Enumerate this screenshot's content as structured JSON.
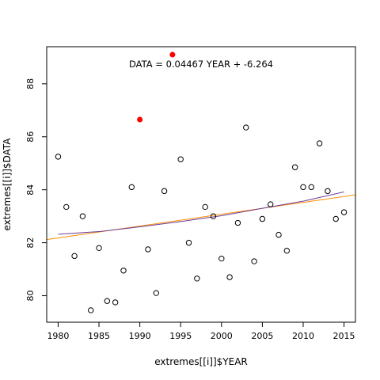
{
  "chart_data": {
    "type": "scatter",
    "title": "",
    "xlabel": "extremes[[i]]$YEAR",
    "ylabel": "extremes[[i]]$DATA",
    "xlim": [
      1978.6,
      2016.4
    ],
    "ylim": [
      79.0,
      89.4
    ],
    "x_ticks": [
      1980,
      1985,
      1990,
      1995,
      2000,
      2005,
      2010,
      2015
    ],
    "y_ticks": [
      80,
      82,
      84,
      86,
      88
    ],
    "grid": false,
    "legend": "none",
    "annotation": "DATA = 0.04467 YEAR + -6.264",
    "colors": {
      "points": "#000000",
      "highlight": "#ff0000",
      "fit_line": "#ff8c00",
      "smooth_line": "#6a3d9a"
    },
    "series": [
      {
        "points": [
          [
            1980,
            85.25
          ],
          [
            1981,
            83.35
          ],
          [
            1982,
            81.5
          ],
          [
            1983,
            83.0
          ],
          [
            1984,
            79.45
          ],
          [
            1985,
            81.8
          ],
          [
            1986,
            79.8
          ],
          [
            1987,
            79.75
          ],
          [
            1988,
            80.95
          ],
          [
            1989,
            84.1
          ],
          [
            1991,
            81.75
          ],
          [
            1992,
            80.1
          ],
          [
            1993,
            83.95
          ],
          [
            1995,
            85.15
          ],
          [
            1996,
            82.0
          ],
          [
            1997,
            80.65
          ],
          [
            1998,
            83.35
          ],
          [
            1999,
            83.0
          ],
          [
            2000,
            81.4
          ],
          [
            2001,
            80.7
          ],
          [
            2002,
            82.75
          ],
          [
            2003,
            86.35
          ],
          [
            2004,
            81.3
          ],
          [
            2005,
            82.9
          ],
          [
            2006,
            83.45
          ],
          [
            2007,
            82.3
          ],
          [
            2008,
            81.7
          ],
          [
            2009,
            84.85
          ],
          [
            2010,
            84.1
          ],
          [
            2011,
            84.1
          ],
          [
            2012,
            85.75
          ],
          [
            2013,
            83.95
          ],
          [
            2014,
            82.9
          ],
          [
            2015,
            83.15
          ]
        ]
      },
      {
        "style": "filled",
        "points": [
          [
            1990,
            86.65
          ],
          [
            1994,
            89.1
          ]
        ]
      }
    ],
    "fit_line": {
      "slope": 0.04467,
      "intercept": -6.264
    },
    "smooth_line": [
      [
        1980,
        82.32
      ],
      [
        1985,
        82.42
      ],
      [
        1990,
        82.6
      ],
      [
        1995,
        82.8
      ],
      [
        2000,
        83.02
      ],
      [
        2005,
        83.3
      ],
      [
        2010,
        83.57
      ],
      [
        2015,
        83.92
      ]
    ]
  }
}
